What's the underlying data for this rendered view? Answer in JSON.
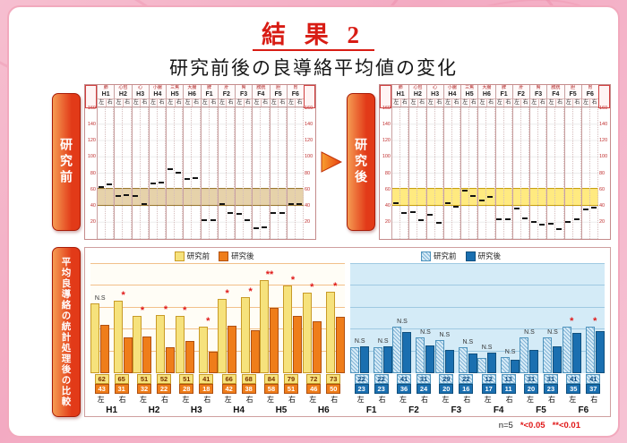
{
  "slide": {
    "title": "結 果 2",
    "subtitle": "研究前後の良導絡平均値の変化"
  },
  "panels": {
    "before_label": "研究前",
    "after_label": "研究後",
    "comparison_label": "平均良導絡の統計処理後の比較"
  },
  "ryodoraku": {
    "meridians": [
      {
        "code": "H1",
        "organ": "肺"
      },
      {
        "code": "H2",
        "organ": "心包"
      },
      {
        "code": "H3",
        "organ": "心"
      },
      {
        "code": "H4",
        "organ": "小腸"
      },
      {
        "code": "H5",
        "organ": "三焦"
      },
      {
        "code": "H6",
        "organ": "大腸"
      },
      {
        "code": "F1",
        "organ": "脾"
      },
      {
        "code": "F2",
        "organ": "肝"
      },
      {
        "code": "F3",
        "organ": "腎"
      },
      {
        "code": "F4",
        "organ": "膀胱"
      },
      {
        "code": "F5",
        "organ": "胆"
      },
      {
        "code": "F6",
        "organ": "胃"
      }
    ],
    "sub_labels": [
      "左",
      "右"
    ],
    "yticks": [
      160,
      140,
      120,
      100,
      80,
      60,
      40,
      20
    ],
    "ymax": 160,
    "band": {
      "low": 40,
      "high": 60
    }
  },
  "legend": {
    "before": "研究前",
    "after": "研究後"
  },
  "chart_data": [
    {
      "type": "scatter",
      "title": "研究前",
      "categories": [
        "H1",
        "H2",
        "H3",
        "H4",
        "H5",
        "H6",
        "F1",
        "F2",
        "F3",
        "F4",
        "F5",
        "F6"
      ],
      "series": [
        {
          "name": "左",
          "values": [
            62,
            51,
            51,
            66,
            84,
            72,
            22,
            41,
            29,
            12,
            31,
            41
          ]
        },
        {
          "name": "右",
          "values": [
            65,
            52,
            41,
            68,
            79,
            73,
            22,
            31,
            22,
            13,
            31,
            41
          ]
        }
      ],
      "ylim": [
        0,
        160
      ]
    },
    {
      "type": "scatter",
      "title": "研究後",
      "categories": [
        "H1",
        "H2",
        "H3",
        "H4",
        "H5",
        "H6",
        "F1",
        "F2",
        "F3",
        "F4",
        "F5",
        "F6"
      ],
      "series": [
        {
          "name": "左",
          "values": [
            43,
            32,
            28,
            42,
            58,
            46,
            23,
            36,
            20,
            17,
            20,
            35
          ]
        },
        {
          "name": "右",
          "values": [
            31,
            22,
            18,
            38,
            51,
            50,
            23,
            24,
            16,
            11,
            23,
            37
          ]
        }
      ],
      "ylim": [
        0,
        160
      ]
    },
    {
      "type": "bar",
      "title": "平均良導絡の統計処理後の比較",
      "ylim": [
        0,
        100
      ],
      "legend_before": "研究前",
      "legend_after": "研究後",
      "groups": [
        {
          "name": "H1",
          "section": "H",
          "left": {
            "before": 62,
            "after": 43,
            "sig": "N.S"
          },
          "right": {
            "before": 65,
            "after": 31,
            "sig": "*"
          }
        },
        {
          "name": "H2",
          "section": "H",
          "left": {
            "before": 51,
            "after": 32,
            "sig": "*"
          },
          "right": {
            "before": 52,
            "after": 22,
            "sig": "*"
          }
        },
        {
          "name": "H3",
          "section": "H",
          "left": {
            "before": 51,
            "after": 28,
            "sig": "*"
          },
          "right": {
            "before": 41,
            "after": 18,
            "sig": "*"
          }
        },
        {
          "name": "H4",
          "section": "H",
          "left": {
            "before": 66,
            "after": 42,
            "sig": "*"
          },
          "right": {
            "before": 68,
            "after": 38,
            "sig": "*"
          }
        },
        {
          "name": "H5",
          "section": "H",
          "left": {
            "before": 84,
            "after": 58,
            "sig": "**"
          },
          "right": {
            "before": 79,
            "after": 51,
            "sig": "*"
          }
        },
        {
          "name": "H6",
          "section": "H",
          "left": {
            "before": 72,
            "after": 46,
            "sig": "*"
          },
          "right": {
            "before": 73,
            "after": 50,
            "sig": "*"
          }
        },
        {
          "name": "F1",
          "section": "F",
          "left": {
            "before": 22,
            "after": 23,
            "sig": "N.S"
          },
          "right": {
            "before": 22,
            "after": 23,
            "sig": "N.S"
          }
        },
        {
          "name": "F2",
          "section": "F",
          "left": {
            "before": 41,
            "after": 36,
            "sig": "N.S"
          },
          "right": {
            "before": 31,
            "after": 24,
            "sig": "N.S"
          }
        },
        {
          "name": "F3",
          "section": "F",
          "left": {
            "before": 29,
            "after": 20,
            "sig": "N.S"
          },
          "right": {
            "before": 22,
            "after": 16,
            "sig": "N.S"
          }
        },
        {
          "name": "F4",
          "section": "F",
          "left": {
            "before": 12,
            "after": 17,
            "sig": "N.S"
          },
          "right": {
            "before": 13,
            "after": 11,
            "sig": "N.S"
          }
        },
        {
          "name": "F5",
          "section": "F",
          "left": {
            "before": 31,
            "after": 20,
            "sig": "N.S"
          },
          "right": {
            "before": 31,
            "after": 23,
            "sig": "N.S"
          }
        },
        {
          "name": "F6",
          "section": "F",
          "left": {
            "before": 41,
            "after": 35,
            "sig": "*"
          },
          "right": {
            "before": 41,
            "after": 37,
            "sig": "*"
          }
        }
      ]
    }
  ],
  "footnote": {
    "n": "n=5",
    "p05": "*<0.05",
    "p01": "**<0.01"
  },
  "colors": {
    "h_before": "#f6e27c",
    "h_after": "#ef7d1a",
    "f_before": "#d8ecf7",
    "f_after": "#1a6fb0",
    "accent_red": "#d81c14"
  }
}
